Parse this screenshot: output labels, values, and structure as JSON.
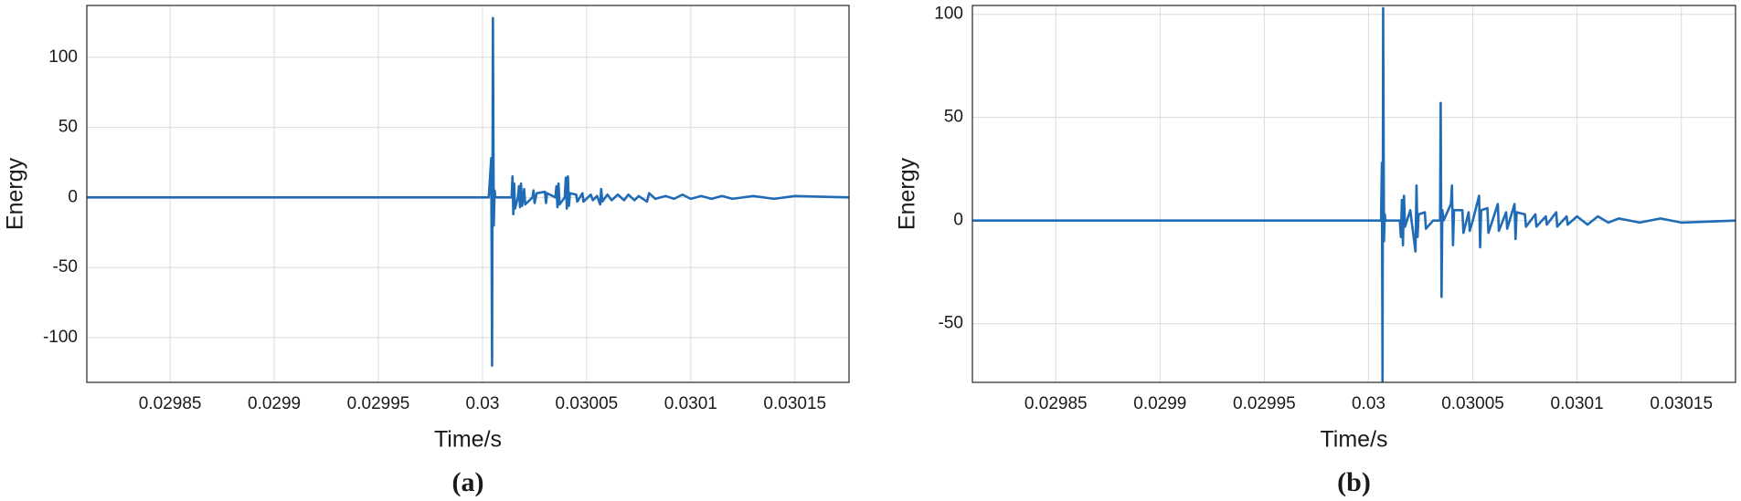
{
  "chart_data": [
    {
      "type": "line",
      "caption": "(a)",
      "xlabel": "Time/s",
      "ylabel": "Energy",
      "color": "#1f6bb5",
      "grid": true,
      "xlim": [
        0.02981,
        0.030176
      ],
      "ylim": [
        -132,
        137
      ],
      "xticks": [
        0.02985,
        0.0299,
        0.02995,
        0.03,
        0.03005,
        0.0301,
        0.03015
      ],
      "yticks": [
        -100,
        -50,
        0,
        50,
        100
      ],
      "x": [
        0.02981,
        0.030003,
        0.0300042,
        0.0300046,
        0.030005,
        0.0300054,
        0.0300058,
        0.0300062,
        0.030014,
        0.0300144,
        0.0300148,
        0.0300152,
        0.0300156,
        0.030017,
        0.0300175,
        0.030018,
        0.0300185,
        0.030019,
        0.0300195,
        0.03002,
        0.0300205,
        0.030024,
        0.0300245,
        0.030025,
        0.030026,
        0.03003,
        0.0300305,
        0.030031,
        0.030035,
        0.0300355,
        0.030036,
        0.0300365,
        0.030037,
        0.0300395,
        0.03004,
        0.0300405,
        0.030041,
        0.0300415,
        0.030042,
        0.030045,
        0.0300455,
        0.030048,
        0.0300485,
        0.030052,
        0.030053,
        0.030055,
        0.0300565,
        0.030057,
        0.0300575,
        0.03006,
        0.030062,
        0.030065,
        0.030068,
        0.03007,
        0.030073,
        0.030075,
        0.030079,
        0.03008,
        0.030083,
        0.030088,
        0.030092,
        0.030096,
        0.0301,
        0.030105,
        0.03011,
        0.030115,
        0.03012,
        0.03013,
        0.03014,
        0.03015,
        0.030176
      ],
      "values": [
        0,
        0,
        28,
        -120,
        128,
        -20,
        5,
        0,
        0,
        15,
        -12,
        10,
        -8,
        0,
        8,
        -7,
        10,
        -6,
        0,
        6,
        -5,
        0,
        5,
        -4,
        3,
        4,
        -4,
        3,
        0,
        8,
        -7,
        10,
        -5,
        0,
        14,
        -8,
        15,
        -6,
        3,
        2,
        -3,
        3,
        -3,
        2,
        -2,
        1,
        -5,
        6,
        -3,
        2,
        -2,
        2,
        -2,
        2,
        -2,
        1,
        -3,
        3,
        -1,
        1,
        -1,
        2,
        -1,
        1,
        -1,
        1,
        -1,
        1,
        -1,
        1,
        0
      ]
    },
    {
      "type": "line",
      "caption": "(b)",
      "xlabel": "Time/s",
      "ylabel": "Energy",
      "color": "#1f6bb5",
      "grid": true,
      "xlim": [
        0.02981,
        0.030176
      ],
      "ylim": [
        -78.5,
        104.3
      ],
      "xticks": [
        0.02985,
        0.0299,
        0.02995,
        0.03,
        0.03005,
        0.0301,
        0.03015
      ],
      "yticks": [
        -50,
        0,
        50,
        100
      ],
      "x": [
        0.02981,
        0.030006,
        0.0300064,
        0.0300067,
        0.030007,
        0.0300074,
        0.0300078,
        0.030008,
        0.030015,
        0.0300155,
        0.030016,
        0.0300165,
        0.030017,
        0.0300175,
        0.03002,
        0.0300225,
        0.030023,
        0.0300235,
        0.030024,
        0.030027,
        0.0300275,
        0.030031,
        0.0300343,
        0.0300346,
        0.030035,
        0.0300354,
        0.030036,
        0.0300395,
        0.03004,
        0.0300405,
        0.030041,
        0.030045,
        0.0300455,
        0.030048,
        0.0300485,
        0.03005,
        0.030053,
        0.0300535,
        0.030054,
        0.030057,
        0.0300575,
        0.030062,
        0.0300625,
        0.030066,
        0.0300665,
        0.03007,
        0.0300705,
        0.030071,
        0.030075,
        0.0300755,
        0.03008,
        0.0300805,
        0.030085,
        0.0300855,
        0.03009,
        0.0300905,
        0.030095,
        0.0300955,
        0.0301,
        0.030105,
        0.03011,
        0.030115,
        0.03012,
        0.03013,
        0.03014,
        0.03015,
        0.030176
      ],
      "values": [
        0,
        0,
        28,
        -78,
        103,
        -10,
        3,
        0,
        0,
        -8,
        10,
        -12,
        12,
        -3,
        5,
        -15,
        17,
        -8,
        3,
        4,
        -4,
        0,
        0,
        57,
        -37,
        5,
        0,
        8,
        17,
        -12,
        5,
        5,
        -6,
        4,
        -5,
        0,
        12,
        -13,
        5,
        6,
        -6,
        8,
        -5,
        4,
        -4,
        8,
        -9,
        4,
        3,
        -3,
        3,
        -3,
        2,
        -2,
        4,
        -3,
        2,
        -2,
        2,
        -2,
        2,
        -1,
        1,
        -1,
        1,
        -1,
        0
      ]
    }
  ]
}
